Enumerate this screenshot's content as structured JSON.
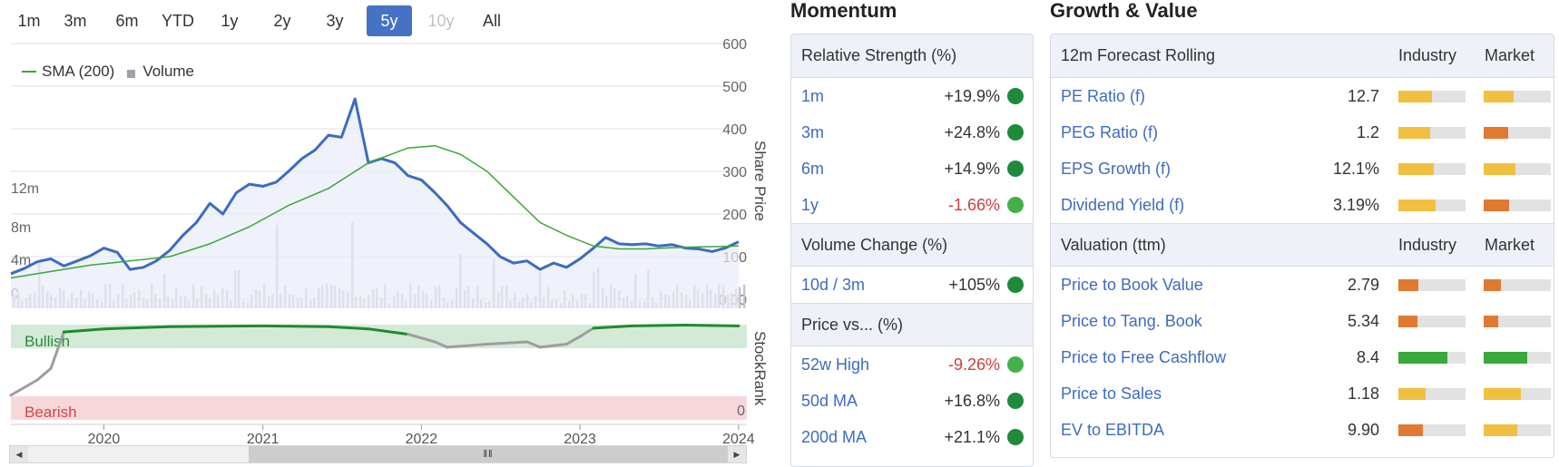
{
  "range_tabs": [
    {
      "label": "1m",
      "state": "normal"
    },
    {
      "label": "3m",
      "state": "normal"
    },
    {
      "label": "6m",
      "state": "normal"
    },
    {
      "label": "YTD",
      "state": "normal"
    },
    {
      "label": "1y",
      "state": "normal"
    },
    {
      "label": "2y",
      "state": "normal"
    },
    {
      "label": "3y",
      "state": "normal"
    },
    {
      "label": "5y",
      "state": "active"
    },
    {
      "label": "10y",
      "state": "disabled"
    },
    {
      "label": "All",
      "state": "normal"
    }
  ],
  "legend": {
    "sma_label": "SMA (200)",
    "volume_label": "Volume"
  },
  "colors": {
    "price": "#3d6cc0",
    "sma": "#3aa838",
    "volume": "#c4c6ca",
    "stockrank_bull": "#1f8a2e",
    "stockrank_other": "#9e9e9e",
    "bullish_band": "#d4ead8",
    "bearish_band": "#f8d7da",
    "dot_dark": "#1f8a3b",
    "dot_light": "#45b04a",
    "bar_yellow": "#f1c040",
    "bar_orange": "#e07a30",
    "bar_green": "#3aa83a",
    "accent_active": "#4572c4"
  },
  "chart_data": {
    "type": "line",
    "x_ticks": [
      "2020",
      "2021",
      "2022",
      "2023",
      "2024"
    ],
    "price_axis": {
      "label": "Share Price",
      "ticks": [
        "0.00",
        "100",
        "200",
        "300",
        "400",
        "500",
        "600"
      ],
      "ylim": [
        0,
        600
      ]
    },
    "volume_axis": {
      "ticks": [
        "0",
        "4m",
        "8m",
        "12m"
      ]
    },
    "stockrank_axis": {
      "label": "StockRank",
      "ticks": [
        "0"
      ]
    },
    "band_labels": {
      "bullish": "Bullish",
      "bearish": "Bearish"
    },
    "price_series": {
      "x": [
        "2019-06",
        "2019-07",
        "2019-08",
        "2019-09",
        "2019-10",
        "2019-11",
        "2019-12",
        "2020-01",
        "2020-02",
        "2020-03",
        "2020-04",
        "2020-05",
        "2020-06",
        "2020-07",
        "2020-08",
        "2020-09",
        "2020-10",
        "2020-11",
        "2020-12",
        "2021-01",
        "2021-02",
        "2021-03",
        "2021-04",
        "2021-05",
        "2021-06",
        "2021-07",
        "2021-08",
        "2021-09",
        "2021-10",
        "2021-11",
        "2021-12",
        "2022-01",
        "2022-02",
        "2022-03",
        "2022-04",
        "2022-05",
        "2022-06",
        "2022-07",
        "2022-08",
        "2022-09",
        "2022-10",
        "2022-11",
        "2022-12",
        "2023-01",
        "2023-02",
        "2023-03",
        "2023-04",
        "2023-05",
        "2023-06",
        "2023-07",
        "2023-08",
        "2023-09",
        "2023-10",
        "2023-11",
        "2023-12",
        "2024-01"
      ],
      "y": [
        60,
        72,
        88,
        95,
        78,
        90,
        102,
        120,
        110,
        70,
        75,
        90,
        115,
        150,
        180,
        225,
        200,
        250,
        270,
        265,
        275,
        300,
        330,
        350,
        385,
        380,
        470,
        320,
        330,
        320,
        290,
        280,
        250,
        220,
        180,
        155,
        130,
        100,
        85,
        90,
        70,
        85,
        75,
        95,
        120,
        145,
        130,
        128,
        130,
        125,
        128,
        120,
        118,
        112,
        120,
        135
      ]
    },
    "sma_series": {
      "x": [
        "2019-06",
        "2019-09",
        "2019-12",
        "2020-03",
        "2020-06",
        "2020-09",
        "2020-12",
        "2021-03",
        "2021-06",
        "2021-09",
        "2021-12",
        "2022-02",
        "2022-04",
        "2022-06",
        "2022-08",
        "2022-10",
        "2022-12",
        "2023-02",
        "2023-04",
        "2023-06",
        "2023-08",
        "2023-10",
        "2023-12",
        "2024-01"
      ],
      "y": [
        50,
        65,
        80,
        90,
        100,
        130,
        170,
        220,
        260,
        320,
        355,
        360,
        340,
        300,
        240,
        180,
        150,
        125,
        118,
        118,
        121,
        123,
        124,
        125
      ]
    },
    "stockrank_series": {
      "x": [
        "2019-06",
        "2019-08",
        "2019-09",
        "2019-10",
        "2020-01",
        "2020-06",
        "2021-01",
        "2021-06",
        "2021-09",
        "2021-12",
        "2022-02",
        "2022-03",
        "2022-06",
        "2022-09",
        "2022-10",
        "2022-12",
        "2023-01",
        "2023-02",
        "2023-05",
        "2023-09",
        "2024-01"
      ],
      "y": [
        5,
        25,
        40,
        88,
        92,
        95,
        96,
        95,
        92,
        85,
        75,
        68,
        72,
        75,
        68,
        72,
        82,
        93,
        96,
        97,
        96
      ],
      "bullish_threshold": 85
    }
  },
  "momentum": {
    "title": "Momentum",
    "relative_strength": {
      "header": "Relative Strength (%)",
      "rows": [
        {
          "label": "1m",
          "value": "+19.9%",
          "neg": false,
          "dot": "dark"
        },
        {
          "label": "3m",
          "value": "+24.8%",
          "neg": false,
          "dot": "dark"
        },
        {
          "label": "6m",
          "value": "+14.9%",
          "neg": false,
          "dot": "dark"
        },
        {
          "label": "1y",
          "value": "-1.66%",
          "neg": true,
          "dot": "light"
        }
      ]
    },
    "volume_change": {
      "header": "Volume Change (%)",
      "rows": [
        {
          "label": "10d / 3m",
          "value": "+105%",
          "neg": false,
          "dot": "dark"
        }
      ]
    },
    "price_vs": {
      "header": "Price vs... (%)",
      "rows": [
        {
          "label": "52w High",
          "value": "-9.26%",
          "neg": true,
          "dot": "light"
        },
        {
          "label": "50d MA",
          "value": "+16.8%",
          "neg": false,
          "dot": "dark"
        },
        {
          "label": "200d MA",
          "value": "+21.1%",
          "neg": false,
          "dot": "dark"
        }
      ]
    }
  },
  "growth_value": {
    "title": "Growth & Value",
    "col_industry": "Industry",
    "col_market": "Market",
    "forecast": {
      "header": "12m Forecast Rolling",
      "rows": [
        {
          "label": "PE Ratio (f)",
          "value": "12.7",
          "industry": {
            "level": 0.5,
            "color": "yellow"
          },
          "market": {
            "level": 0.45,
            "color": "yellow"
          }
        },
        {
          "label": "PEG Ratio (f)",
          "value": "1.2",
          "industry": {
            "level": 0.47,
            "color": "yellow"
          },
          "market": {
            "level": 0.36,
            "color": "orange"
          }
        },
        {
          "label": "EPS Growth (f)",
          "value": "12.1%",
          "industry": {
            "level": 0.53,
            "color": "yellow"
          },
          "market": {
            "level": 0.47,
            "color": "yellow"
          }
        },
        {
          "label": "Dividend Yield (f)",
          "value": "3.19%",
          "industry": {
            "level": 0.55,
            "color": "yellow"
          },
          "market": {
            "level": 0.38,
            "color": "orange"
          }
        }
      ]
    },
    "valuation": {
      "header": "Valuation (ttm)",
      "rows": [
        {
          "label": "Price to Book Value",
          "value": "2.79",
          "industry": {
            "level": 0.3,
            "color": "orange"
          },
          "market": {
            "level": 0.26,
            "color": "orange"
          }
        },
        {
          "label": "Price to Tang. Book",
          "value": "5.34",
          "industry": {
            "level": 0.28,
            "color": "orange"
          },
          "market": {
            "level": 0.22,
            "color": "orange"
          }
        },
        {
          "label": "Price to Free Cashflow",
          "value": "8.4",
          "industry": {
            "level": 0.73,
            "color": "green"
          },
          "market": {
            "level": 0.65,
            "color": "green"
          }
        },
        {
          "label": "Price to Sales",
          "value": "1.18",
          "industry": {
            "level": 0.4,
            "color": "yellow"
          },
          "market": {
            "level": 0.55,
            "color": "yellow"
          }
        },
        {
          "label": "EV to EBITDA",
          "value": "9.90",
          "industry": {
            "level": 0.36,
            "color": "orange"
          },
          "market": {
            "level": 0.5,
            "color": "yellow"
          }
        }
      ]
    }
  }
}
